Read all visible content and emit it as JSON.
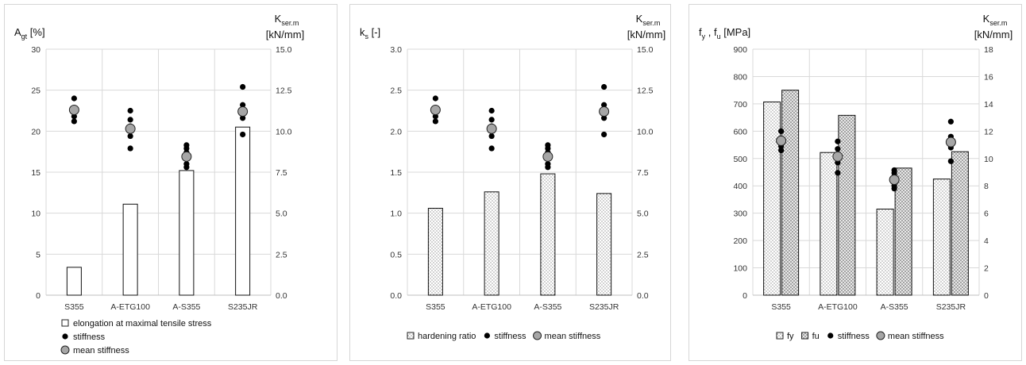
{
  "chart_data": [
    {
      "type": "bar",
      "categories": [
        "S355",
        "A-ETG100",
        "A-S355",
        "S235JR"
      ],
      "ylabel_main": "A",
      "ylabel_sub": "gt",
      "ylabel_tail": " [%]",
      "y2label_main": "K",
      "y2label_sub": "ser.m",
      "y2label_unit": "[kN/mm]",
      "ylim": [
        0,
        30
      ],
      "yticks": [
        "0",
        "5",
        "10",
        "15",
        "20",
        "25",
        "30"
      ],
      "y2lim": [
        0,
        15
      ],
      "y2ticks": [
        "0.0",
        "2.5",
        "5.0",
        "7.5",
        "10.0",
        "12.5",
        "15.0"
      ],
      "grid": true,
      "legend_position": "bottom-left-stacked",
      "series": [
        {
          "name": "elongation at maximal tensile stress",
          "kind": "bar",
          "pattern": "plain",
          "axis": "left",
          "values": [
            3.4,
            11.1,
            15.2,
            20.5
          ]
        },
        {
          "name": "stiffness",
          "kind": "points",
          "axis": "right",
          "values": [
            [
              12.0,
              11.3,
              10.9,
              10.6
            ],
            [
              11.25,
              10.7,
              10.3,
              9.7,
              8.95
            ],
            [
              9.15,
              8.95,
              8.7,
              8.0,
              7.8
            ],
            [
              12.7,
              11.6,
              11.2,
              10.8,
              9.8
            ]
          ]
        },
        {
          "name": "mean stiffness",
          "kind": "mean",
          "axis": "right",
          "values": [
            11.3,
            10.15,
            8.45,
            11.2
          ]
        }
      ]
    },
    {
      "type": "bar",
      "categories": [
        "S355",
        "A-ETG100",
        "A-S355",
        "S235JR"
      ],
      "ylabel_main": "k",
      "ylabel_sub": "s",
      "ylabel_tail": " [-]",
      "y2label_main": "K",
      "y2label_sub": "ser.m",
      "y2label_unit": "[kN/mm]",
      "ylim": [
        0,
        3
      ],
      "yticks": [
        "0.0",
        "0.5",
        "1.0",
        "1.5",
        "2.0",
        "2.5",
        "3.0"
      ],
      "y2lim": [
        0,
        15
      ],
      "y2ticks": [
        "0.0",
        "2.5",
        "5.0",
        "7.5",
        "10.0",
        "12.5",
        "15.0"
      ],
      "grid": true,
      "legend_position": "bottom-inline",
      "series": [
        {
          "name": "hardening ratio",
          "kind": "bar",
          "pattern": "dots",
          "axis": "left",
          "values": [
            1.06,
            1.26,
            1.48,
            1.24
          ]
        },
        {
          "name": "stiffness",
          "kind": "points",
          "axis": "right",
          "values": [
            [
              12.0,
              11.3,
              10.9,
              10.6
            ],
            [
              11.25,
              10.7,
              10.3,
              9.7,
              8.95
            ],
            [
              9.15,
              8.95,
              8.7,
              8.0,
              7.8
            ],
            [
              12.7,
              11.6,
              11.2,
              10.8,
              9.8
            ]
          ]
        },
        {
          "name": "mean stiffness",
          "kind": "mean",
          "axis": "right",
          "values": [
            11.3,
            10.15,
            8.45,
            11.2
          ]
        }
      ]
    },
    {
      "type": "bar",
      "categories": [
        "S355",
        "A-ETG100",
        "A-S355",
        "S235JR"
      ],
      "ylabel_main": "f",
      "ylabel_sub": "y",
      "ylabel_mid": " , f",
      "ylabel_sub2": "u",
      "ylabel_tail": " [MPa]",
      "y2label_main": "K",
      "y2label_sub": "ser.m",
      "y2label_unit": "[kN/mm]",
      "ylim": [
        0,
        900
      ],
      "yticks": [
        "0",
        "100",
        "200",
        "300",
        "400",
        "500",
        "600",
        "700",
        "800",
        "900"
      ],
      "y2lim": [
        0,
        18
      ],
      "y2ticks": [
        "0",
        "2",
        "4",
        "6",
        "8",
        "10",
        "12",
        "14",
        "16",
        "18"
      ],
      "grid": true,
      "legend_position": "bottom-inline",
      "series": [
        {
          "name": "fy",
          "kind": "bar",
          "pattern": "dots",
          "axis": "left",
          "values": [
            707,
            522,
            315,
            425
          ]
        },
        {
          "name": "fu",
          "kind": "bar",
          "pattern": "hatch",
          "axis": "left",
          "values": [
            750,
            658,
            465,
            525
          ]
        },
        {
          "name": "stiffness",
          "kind": "points",
          "axis": "right",
          "values": [
            [
              12.0,
              11.3,
              10.9,
              10.6
            ],
            [
              11.25,
              10.7,
              10.3,
              9.7,
              8.95
            ],
            [
              9.15,
              8.95,
              8.7,
              8.0,
              7.8
            ],
            [
              12.7,
              11.6,
              11.2,
              10.8,
              9.8
            ]
          ]
        },
        {
          "name": "mean stiffness",
          "kind": "mean",
          "axis": "right",
          "values": [
            11.3,
            10.15,
            8.45,
            11.2
          ]
        }
      ]
    }
  ]
}
